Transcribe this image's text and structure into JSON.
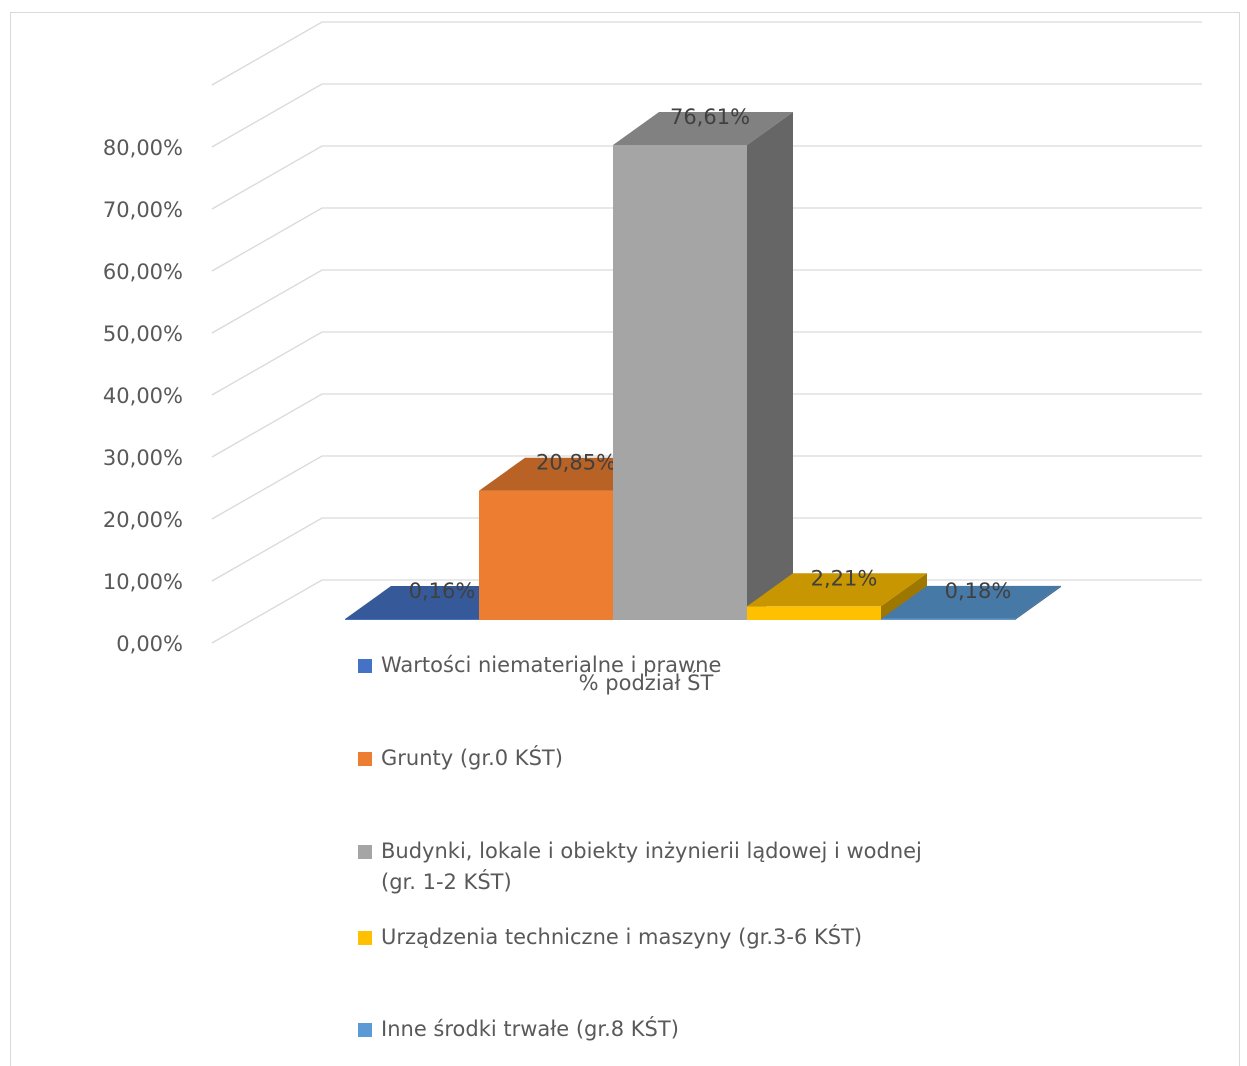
{
  "chart_data": {
    "type": "bar",
    "title": "",
    "xlabel": "% podział ŚT",
    "ylabel": "",
    "ylim": [
      0,
      80
    ],
    "grid": true,
    "legend_position": "bottom",
    "yticks": [
      "0,00%",
      "10,00%",
      "20,00%",
      "30,00%",
      "40,00%",
      "50,00%",
      "60,00%",
      "70,00%",
      "80,00%"
    ],
    "series": [
      {
        "name": "Wartości niematerialne i prawne",
        "value": 0.16,
        "label": "0,16%",
        "color": "#4472c4"
      },
      {
        "name": "Grunty (gr.0 KŚT)",
        "value": 20.85,
        "label": "20,85%",
        "color": "#ed7d31"
      },
      {
        "name": "Budynki, lokale i obiekty inżynierii lądowej i wodnej (gr. 1-2 KŚT)",
        "value": 76.61,
        "label": "76,61%",
        "color": "#a5a5a5"
      },
      {
        "name": "Urządzenia techniczne i maszyny (gr.3-6 KŚT)",
        "value": 2.21,
        "label": "2,21%",
        "color": "#ffc000"
      },
      {
        "name": "Inne środki trwałe (gr.8 KŚT)",
        "value": 0.18,
        "label": "0,18%",
        "color": "#5b9bd5"
      }
    ]
  }
}
